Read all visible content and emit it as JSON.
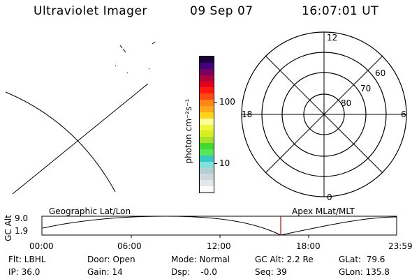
{
  "header": {
    "instrument": "Ultraviolet Imager",
    "date": "09 Sep 07",
    "time": "16:07:01 UT"
  },
  "colorbar": {
    "unit_label": "photon cm⁻²s⁻¹",
    "tick_100": "100",
    "tick_10": "10",
    "colors": [
      "#fbfbfb",
      "#e3e7ea",
      "#cfd8dd",
      "#b7cdd4",
      "#7fe0de",
      "#35c9c4",
      "#5be35b",
      "#3fdc2f",
      "#a8e02a",
      "#d7f01f",
      "#f0f53a",
      "#fcfc9a",
      "#ffd21a",
      "#ffa81c",
      "#ff8614",
      "#ff4b12",
      "#ff1a0f",
      "#e3001a",
      "#b2003a",
      "#7a0062",
      "#460077",
      "#1c0040"
    ]
  },
  "polar": {
    "mlt_top": "12",
    "mlt_left": "18",
    "mlt_right": "6",
    "mlt_bottom": "0",
    "lat_60": "60",
    "lat_70": "70",
    "lat_80": "80"
  },
  "timeline": {
    "y_axis_label": "GC Alt",
    "y_max": "9.0",
    "y_min": "1.9",
    "left_title": "Geographic Lat/Lon",
    "right_title": "Apex MLat/MLT",
    "ticks": [
      "00:00",
      "06:00",
      "12:00",
      "18:00",
      "23:59"
    ]
  },
  "status": {
    "flt": "Flt: LBHL",
    "ip": "IP: 36.0",
    "door": "Door: Open",
    "gain": "Gain: 14",
    "mode": "Mode: Normal",
    "dsp": "Dsp:    -0.0",
    "gc_alt": "GC Alt: 2.2 Re",
    "seq": "Seq: 39",
    "glat": "GLat:  79.6",
    "glon": "GLon: 135.8"
  }
}
